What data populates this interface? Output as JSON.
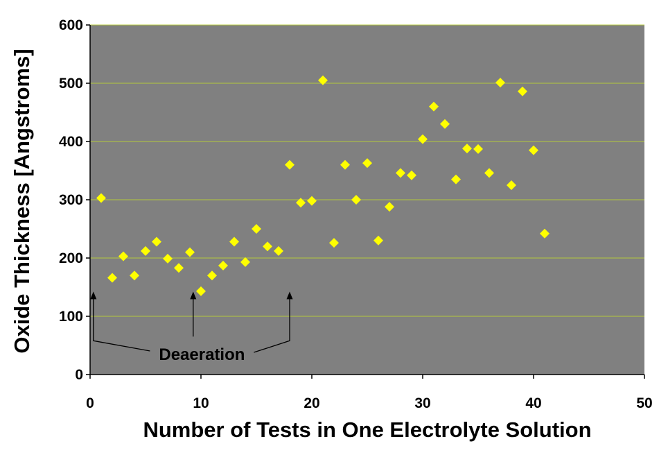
{
  "chart_data": {
    "type": "scatter",
    "xlabel": "Number of Tests in One Electrolyte Solution",
    "ylabel": "Oxide Thickness [Angstroms]",
    "xlim": [
      0,
      50
    ],
    "ylim": [
      0,
      600
    ],
    "x_ticks": [
      "0",
      "10",
      "20",
      "30",
      "40",
      "50"
    ],
    "y_ticks": [
      "0",
      "100",
      "200",
      "300",
      "400",
      "500",
      "600"
    ],
    "grid": "horizontal",
    "colors": {
      "plot_background": "#808080",
      "gridline": "#b5c83c",
      "marker": "#ffff00"
    },
    "marker": "diamond",
    "series": [
      {
        "points": [
          [
            1,
            303
          ],
          [
            2,
            166
          ],
          [
            3,
            203
          ],
          [
            4,
            170
          ],
          [
            5,
            212
          ],
          [
            6,
            228
          ],
          [
            7,
            199
          ],
          [
            8,
            183
          ],
          [
            9,
            210
          ],
          [
            10,
            143
          ],
          [
            11,
            170
          ],
          [
            12,
            187
          ],
          [
            13,
            228
          ],
          [
            14,
            193
          ],
          [
            15,
            250
          ],
          [
            16,
            220
          ],
          [
            17,
            212
          ],
          [
            18,
            360
          ],
          [
            19,
            295
          ],
          [
            20,
            298
          ],
          [
            21,
            505
          ],
          [
            22,
            226
          ],
          [
            23,
            360
          ],
          [
            24,
            300
          ],
          [
            25,
            363
          ],
          [
            26,
            230
          ],
          [
            27,
            288
          ],
          [
            28,
            346
          ],
          [
            29,
            342
          ],
          [
            30,
            404
          ],
          [
            31,
            460
          ],
          [
            32,
            430
          ],
          [
            33,
            335
          ],
          [
            34,
            388
          ],
          [
            35,
            387
          ],
          [
            36,
            346
          ],
          [
            37,
            501
          ],
          [
            38,
            325
          ],
          [
            39,
            486
          ],
          [
            40,
            385
          ],
          [
            41,
            242
          ]
        ]
      }
    ],
    "annotation": {
      "text": "Deaeration",
      "arrow_targets_x": [
        0.3,
        9.3,
        18
      ]
    }
  }
}
